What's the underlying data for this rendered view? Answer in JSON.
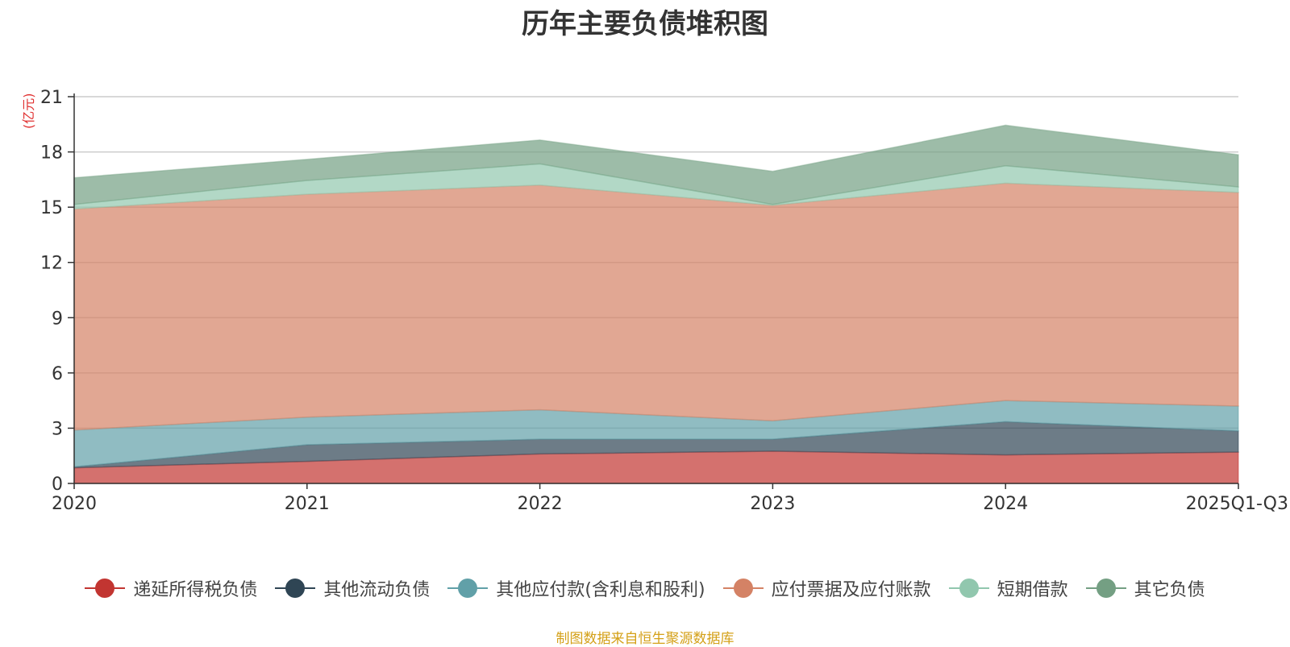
{
  "chart_data": {
    "type": "area",
    "title": "历年主要负债堆积图",
    "ylabel": "(亿元)",
    "xlabel": "",
    "ylim": [
      0,
      21
    ],
    "yticks": [
      0,
      3,
      6,
      9,
      12,
      15,
      18,
      21
    ],
    "categories": [
      "2020",
      "2021",
      "2022",
      "2023",
      "2024",
      "2025Q1-Q3"
    ],
    "stacked": true,
    "grid": true,
    "legend_position": "bottom",
    "series": [
      {
        "name": "递延所得税负债",
        "values": [
          0.85,
          1.2,
          1.6,
          1.75,
          1.55,
          1.7
        ],
        "color": "#c23531"
      },
      {
        "name": "其他流动负债",
        "values": [
          0.05,
          0.9,
          0.8,
          0.65,
          1.8,
          1.15
        ],
        "color": "#2f4554"
      },
      {
        "name": "其他应付款(含利息和股利)",
        "values": [
          2.0,
          1.5,
          1.6,
          1.0,
          1.15,
          1.35
        ],
        "color": "#61a0a8"
      },
      {
        "name": "应付票据及应付账款",
        "values": [
          12.0,
          12.1,
          12.2,
          11.7,
          11.8,
          11.6
        ],
        "color": "#d48265"
      },
      {
        "name": "短期借款",
        "values": [
          0.25,
          0.75,
          1.15,
          0.05,
          0.95,
          0.3
        ],
        "color": "#91c7ae"
      },
      {
        "name": "其它负债",
        "values": [
          1.45,
          1.15,
          1.3,
          1.8,
          2.2,
          1.75
        ],
        "color": "#749f83"
      }
    ]
  },
  "source_note": "制图数据来自恒生聚源数据库"
}
